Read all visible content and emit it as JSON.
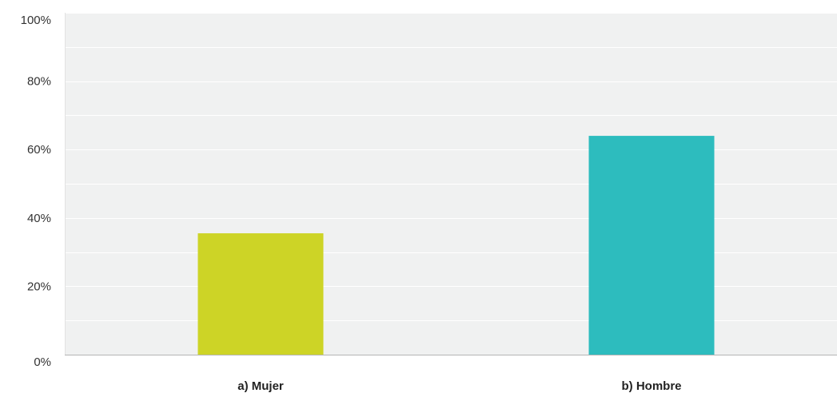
{
  "chart_data": {
    "type": "bar",
    "categories": [
      "a) Mujer",
      "b) Hombre"
    ],
    "values": [
      35.5,
      64
    ],
    "colors": [
      "#cdd426",
      "#2dbcbe"
    ],
    "ylim": [
      0,
      100
    ],
    "yticks": [
      0,
      20,
      40,
      60,
      80,
      100
    ],
    "ytick_labels": [
      "0%",
      "20%",
      "40%",
      "60%",
      "80%",
      "100%"
    ],
    "minor_grid_step": 10,
    "grid": true,
    "legend": "none",
    "plot_background": "#f0f1f1",
    "grid_color": "#ffffff",
    "baseline_color": "#b5b5b5"
  }
}
